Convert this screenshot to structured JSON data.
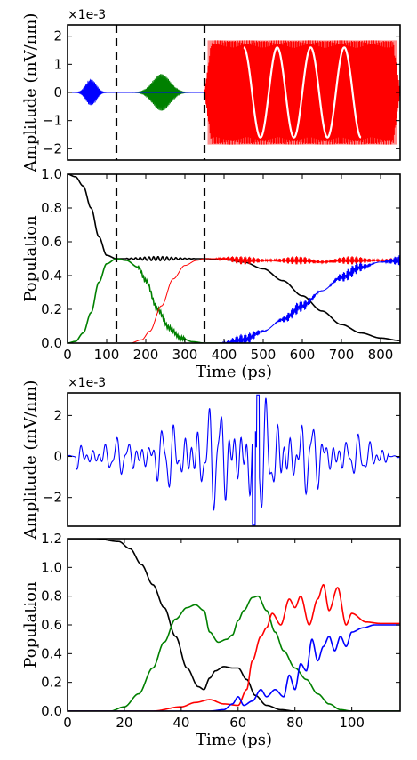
{
  "chart_data": [
    {
      "type": "line",
      "ylabel": "Amplitude (mV/nm)",
      "scale_note": "×1e-3",
      "xlim": [
        0,
        850
      ],
      "ylim": [
        -2.4,
        2.4
      ],
      "yticks": [
        2,
        1,
        0,
        -1,
        -2
      ],
      "yticklabels": [
        "2",
        "1",
        "0",
        "−1",
        "−2"
      ],
      "vlines": [
        125,
        350
      ],
      "grid": false,
      "series": [
        {
          "color": "#0000ff",
          "kind": "gaussian_pulse",
          "center": 60,
          "peak": 0.45,
          "start": 15,
          "end": 105
        },
        {
          "color": "#008000",
          "kind": "gaussian_pulse",
          "center": 240,
          "peak": 0.65,
          "start": 165,
          "end": 320
        },
        {
          "color": "#ff0000",
          "kind": "flat_pulse",
          "peak": 1.85,
          "start": 350,
          "end": 850
        },
        {
          "color": "#ffffff",
          "kind": "inset_sine",
          "amplitude": 1.6,
          "start": 450,
          "end": 750,
          "cycles": 3.5
        }
      ]
    },
    {
      "type": "line",
      "ylabel": "Population",
      "xlabel": "Time (ps)",
      "xlim": [
        0,
        850
      ],
      "ylim": [
        0,
        1.0
      ],
      "xticks": [
        0,
        100,
        200,
        300,
        400,
        500,
        600,
        700,
        800
      ],
      "yticks": [
        0.0,
        0.2,
        0.4,
        0.6,
        0.8,
        1.0
      ],
      "yticklabels": [
        "0.0",
        "0.2",
        "0.4",
        "0.6",
        "0.8",
        "1.0"
      ],
      "vlines": [
        125,
        350
      ],
      "grid": false,
      "series": [
        {
          "color": "#000000",
          "x": [
            0,
            20,
            40,
            60,
            80,
            100,
            125,
            150,
            200,
            250,
            300,
            350,
            400,
            450,
            500,
            550,
            600,
            650,
            700,
            750,
            800,
            850
          ],
          "y": [
            1.0,
            0.985,
            0.93,
            0.8,
            0.63,
            0.52,
            0.5,
            0.5,
            0.5,
            0.5,
            0.5,
            0.5,
            0.495,
            0.48,
            0.44,
            0.37,
            0.28,
            0.19,
            0.11,
            0.06,
            0.03,
            0.015
          ]
        },
        {
          "color": "#008000",
          "x": [
            0,
            20,
            40,
            60,
            80,
            100,
            125,
            150,
            180,
            200,
            230,
            260,
            290,
            320,
            350,
            850
          ],
          "y": [
            0,
            0.01,
            0.06,
            0.18,
            0.36,
            0.47,
            0.5,
            0.49,
            0.45,
            0.37,
            0.2,
            0.09,
            0.03,
            0.008,
            0,
            0
          ]
        },
        {
          "color": "#ff0000",
          "x": [
            0,
            160,
            190,
            210,
            240,
            270,
            300,
            330,
            350,
            400,
            450,
            500,
            550,
            600,
            650,
            700,
            750,
            800,
            850
          ],
          "y": [
            0,
            0,
            0.02,
            0.07,
            0.22,
            0.38,
            0.46,
            0.49,
            0.5,
            0.5,
            0.49,
            0.49,
            0.49,
            0.49,
            0.48,
            0.49,
            0.49,
            0.49,
            0.49
          ]
        },
        {
          "color": "#0000ff",
          "x": [
            0,
            350,
            400,
            450,
            500,
            550,
            600,
            650,
            700,
            750,
            800,
            850
          ],
          "y": [
            0,
            0,
            0.0,
            0.02,
            0.07,
            0.14,
            0.22,
            0.31,
            0.39,
            0.45,
            0.48,
            0.49
          ]
        }
      ]
    },
    {
      "type": "line",
      "ylabel": "Amplitude (mV/nm)",
      "scale_note": "×1e-3",
      "xlim": [
        0,
        117
      ],
      "ylim": [
        -3.4,
        3.1
      ],
      "yticks": [
        2,
        0,
        -2
      ],
      "yticklabels": [
        "2",
        "0",
        "−2"
      ],
      "grid": false,
      "series": [
        {
          "color": "#0000ff",
          "kind": "chirped_noise_pulse",
          "center": 62,
          "peak": 3.3,
          "start": 3,
          "end": 113
        }
      ]
    },
    {
      "type": "line",
      "ylabel": "Population",
      "xlabel": "Time (ps)",
      "xlim": [
        0,
        117
      ],
      "ylim": [
        0,
        1.2
      ],
      "xticks": [
        0,
        20,
        40,
        60,
        80,
        100
      ],
      "yticks": [
        0.0,
        0.2,
        0.4,
        0.6,
        0.8,
        1.0,
        1.2
      ],
      "yticklabels": [
        "0.0",
        "0.2",
        "0.4",
        "0.6",
        "0.8",
        "1.0",
        "1.2"
      ],
      "grid": false,
      "series": [
        {
          "color": "#000000",
          "x": [
            0,
            10,
            18,
            22,
            26,
            30,
            34,
            38,
            42,
            46,
            48,
            50,
            52,
            55,
            58,
            60,
            63,
            66,
            70,
            75,
            80,
            90,
            100,
            117
          ],
          "y": [
            1.2,
            1.2,
            1.18,
            1.13,
            1.02,
            0.88,
            0.72,
            0.52,
            0.3,
            0.17,
            0.15,
            0.23,
            0.28,
            0.31,
            0.3,
            0.3,
            0.22,
            0.11,
            0.04,
            0.01,
            0.0,
            0,
            0,
            0
          ]
        },
        {
          "color": "#008000",
          "x": [
            0,
            15,
            20,
            25,
            30,
            34,
            38,
            42,
            45,
            48,
            50,
            53,
            56,
            58,
            60,
            62,
            65,
            67,
            70,
            73,
            76,
            80,
            84,
            88,
            92,
            96,
            100,
            104,
            108,
            117
          ],
          "y": [
            0,
            0,
            0.03,
            0.12,
            0.3,
            0.48,
            0.64,
            0.72,
            0.74,
            0.7,
            0.55,
            0.48,
            0.5,
            0.53,
            0.63,
            0.7,
            0.79,
            0.8,
            0.7,
            0.55,
            0.42,
            0.3,
            0.22,
            0.12,
            0.05,
            0.01,
            0,
            0,
            0,
            0
          ]
        },
        {
          "color": "#ff0000",
          "x": [
            0,
            30,
            40,
            45,
            50,
            55,
            60,
            63,
            65,
            68,
            70,
            72,
            75,
            78,
            80,
            82,
            85,
            88,
            90,
            92,
            95,
            98,
            100,
            105,
            110,
            117
          ],
          "y": [
            0,
            0,
            0.03,
            0.06,
            0.08,
            0.05,
            0.04,
            0.15,
            0.35,
            0.52,
            0.58,
            0.68,
            0.6,
            0.78,
            0.72,
            0.8,
            0.6,
            0.78,
            0.88,
            0.7,
            0.86,
            0.6,
            0.68,
            0.62,
            0.61,
            0.61
          ]
        },
        {
          "color": "#0000ff",
          "x": [
            0,
            50,
            55,
            58,
            60,
            62,
            65,
            68,
            70,
            73,
            76,
            78,
            80,
            82,
            84,
            86,
            88,
            90,
            92,
            94,
            96,
            98,
            100,
            104,
            108,
            117
          ],
          "y": [
            0,
            0,
            0.01,
            0.05,
            0.1,
            0.04,
            0.07,
            0.15,
            0.1,
            0.15,
            0.1,
            0.25,
            0.15,
            0.33,
            0.28,
            0.5,
            0.35,
            0.45,
            0.52,
            0.42,
            0.52,
            0.45,
            0.55,
            0.58,
            0.6,
            0.6
          ]
        }
      ]
    }
  ]
}
